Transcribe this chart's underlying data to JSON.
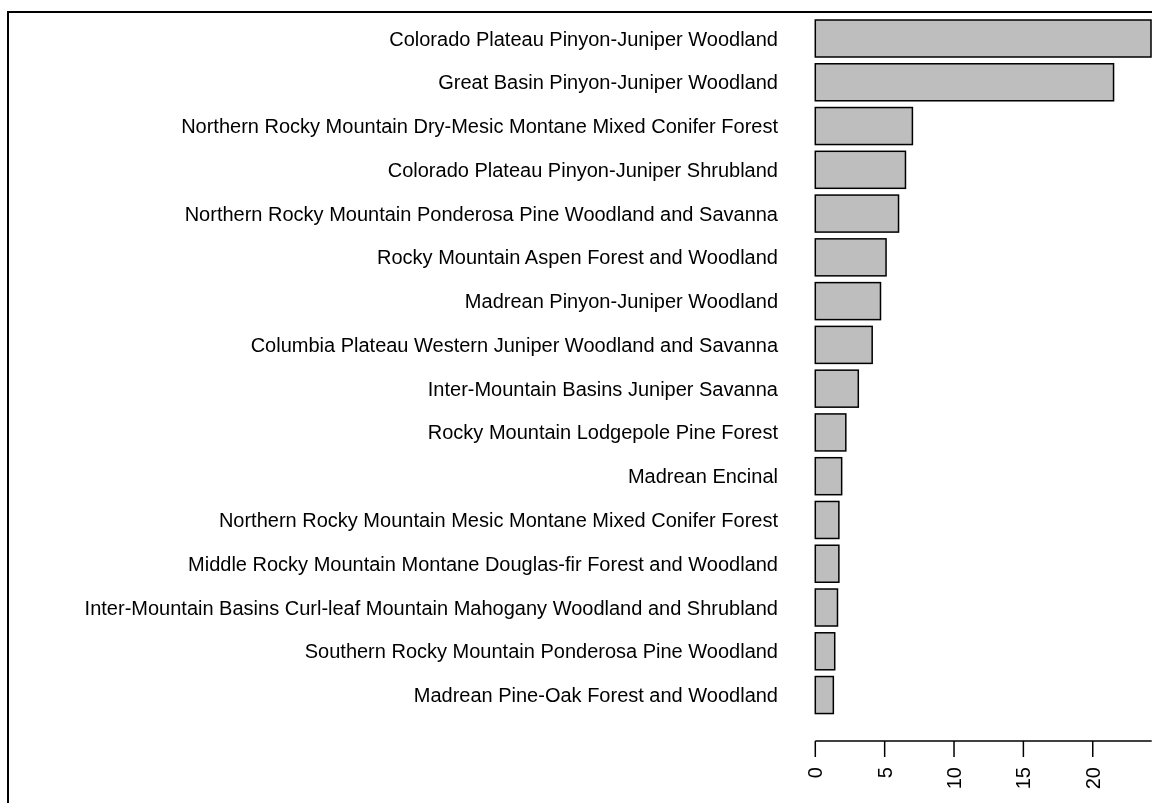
{
  "chart_data": {
    "type": "bar",
    "orientation": "horizontal",
    "categories": [
      "Colorado Plateau Pinyon-Juniper Woodland",
      "Great Basin Pinyon-Juniper Woodland",
      "Northern Rocky Mountain Dry-Mesic Montane Mixed Conifer Forest",
      "Colorado Plateau Pinyon-Juniper Shrubland",
      "Northern Rocky Mountain Ponderosa Pine Woodland and Savanna",
      "Rocky Mountain Aspen Forest and Woodland",
      "Madrean Pinyon-Juniper Woodland",
      "Columbia Plateau Western Juniper Woodland and Savanna",
      "Inter-Mountain Basins Juniper Savanna",
      "Rocky Mountain Lodgepole Pine Forest",
      "Madrean Encinal",
      "Northern Rocky Mountain Mesic Montane Mixed Conifer Forest",
      "Middle Rocky Mountain Montane Douglas-fir Forest and Woodland",
      "Inter-Mountain Basins Curl-leaf Mountain Mahogany Woodland and Shrubland",
      "Southern Rocky Mountain Ponderosa Pine Woodland",
      "Madrean Pine-Oak Forest and Woodland"
    ],
    "values": [
      24.2,
      21.5,
      7.0,
      6.5,
      6.0,
      5.1,
      4.7,
      4.1,
      3.1,
      2.2,
      1.9,
      1.7,
      1.7,
      1.6,
      1.4,
      1.3
    ],
    "color": "#bebebe",
    "xlim": [
      0,
      24.25
    ],
    "xticks": [
      0,
      5,
      10,
      15,
      20
    ],
    "grid": false
  }
}
